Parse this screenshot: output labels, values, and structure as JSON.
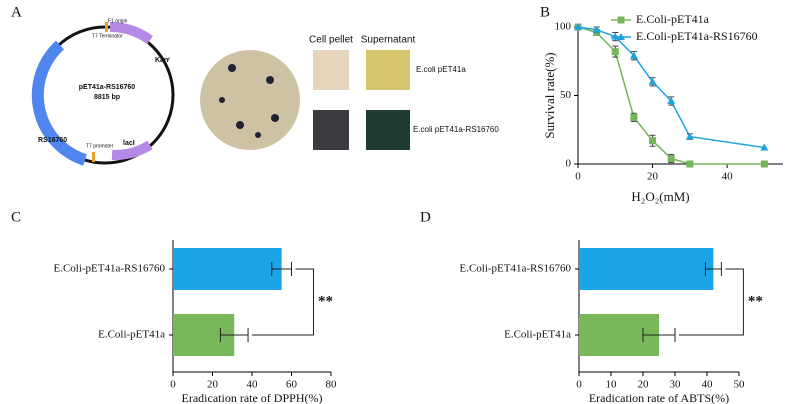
{
  "panel_a": {
    "label": "A",
    "plasmid_name": "pET41a-RS16760",
    "plasmid_size": "8815 bp",
    "features": [
      "Kanʳ",
      "RS16760",
      "lacI",
      "T7 promoter",
      "T7 Terminator",
      "F1 origin"
    ],
    "photo_headers": [
      "Cell pellet",
      "Supernatant"
    ],
    "photo_rows": [
      "E.coli pET41a",
      "E.coli pET41a-RS16760"
    ]
  },
  "chart_data": [
    {
      "type": "line",
      "label": "B",
      "x": [
        0,
        5,
        10,
        15,
        20,
        25,
        30,
        50
      ],
      "series": [
        {
          "name": "E.Coli-pET41a",
          "color": "#76b55a",
          "marker": "square",
          "values": [
            100,
            96,
            82,
            34,
            17,
            4,
            0,
            0
          ],
          "errors": [
            0,
            2,
            4,
            3,
            4,
            3,
            0,
            0
          ]
        },
        {
          "name": "E.Coli-pET41a-RS16760",
          "color": "#1ea3dd",
          "marker": "triangle",
          "values": [
            100,
            98,
            93,
            79,
            60,
            46,
            20,
            12
          ],
          "errors": [
            0,
            2,
            3,
            3,
            3,
            3,
            2,
            0
          ]
        }
      ],
      "xlabel": "H₂O₂(mM)",
      "ylabel": "Survival rate(%)",
      "xlim": [
        0,
        55
      ],
      "xticks": [
        0,
        20,
        40
      ],
      "ylim": [
        0,
        100
      ],
      "yticks": [
        0,
        50,
        100
      ],
      "legend": "top-right"
    },
    {
      "type": "hbar",
      "label": "C",
      "categories": [
        "E.Coli-pET41a-RS16760",
        "E.Coli-pET41a"
      ],
      "values": [
        55,
        31
      ],
      "errors": [
        5,
        7
      ],
      "colors": [
        "#1ba5e6",
        "#78b85a"
      ],
      "xlabel": "Eradication rate of DPPH(%)",
      "xlim": [
        0,
        80
      ],
      "xticks": [
        0,
        20,
        40,
        60,
        80
      ],
      "annotation": "**"
    },
    {
      "type": "hbar",
      "label": "D",
      "categories": [
        "E.Coli-pET41a-RS16760",
        "E.Coli-pET41a"
      ],
      "values": [
        42,
        25
      ],
      "errors": [
        2.5,
        5
      ],
      "colors": [
        "#1ba5e6",
        "#78b85a"
      ],
      "xlabel": "Eradication rate of ABTS(%)",
      "xlim": [
        0,
        50
      ],
      "xticks": [
        0,
        10,
        20,
        30,
        40,
        50
      ],
      "annotation": "**"
    }
  ]
}
